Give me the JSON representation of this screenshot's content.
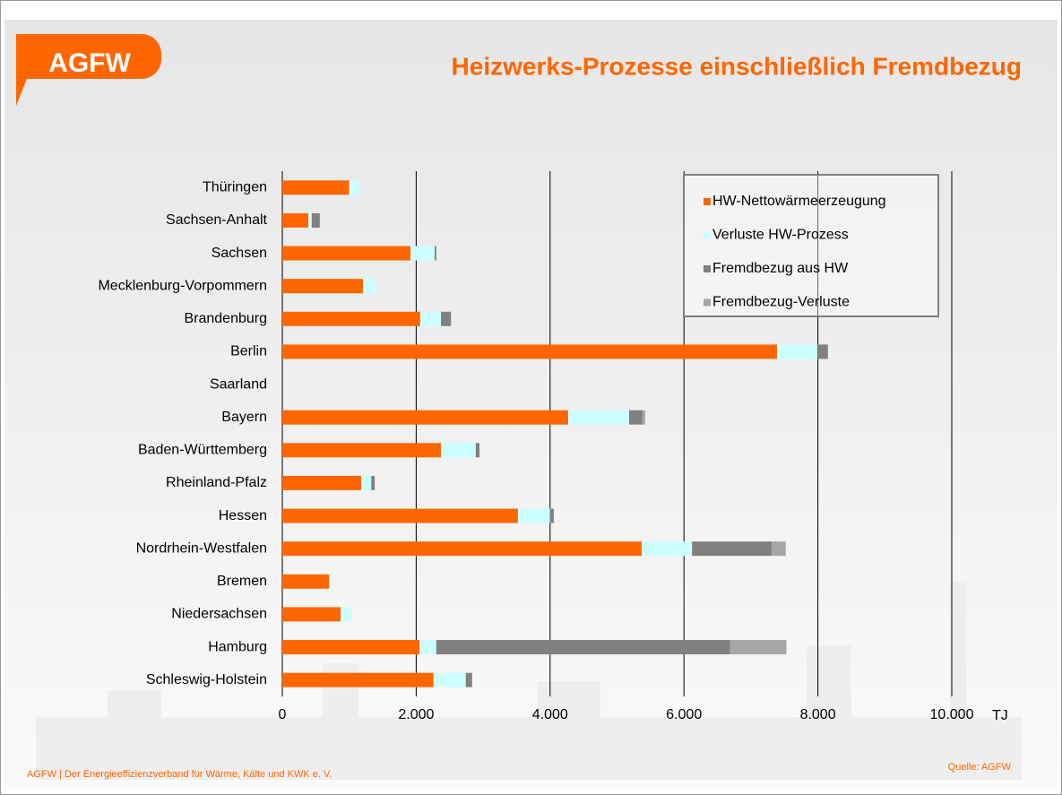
{
  "logo": "AGFW",
  "footer": {
    "left": "AGFW | Der Energieeffizienzverband für Wärme, Kälte und KWK e. V.",
    "right": "Quelle:  AGFW"
  },
  "chart_data": {
    "type": "stacked-barh",
    "title": "Heizwerks-Prozesse einschließlich Fremdbezug",
    "xlabel": "TJ",
    "categories": [
      "Thüringen",
      "Sachsen-Anhalt",
      "Sachsen",
      "Mecklenburg-Vorpommern",
      "Brandenburg",
      "Berlin",
      "Saarland",
      "Bayern",
      "Baden-Württemberg",
      "Rheinland-Pfalz",
      "Hessen",
      "Nordrhein-Westfalen",
      "Bremen",
      "Niedersachsen",
      "Hamburg",
      "Schleswig-Holstein"
    ],
    "series": [
      {
        "name": "HW-Nettowärmeerzeugung",
        "color": "#ff6600",
        "values": [
          1000,
          390,
          1915,
          1205,
          2060,
          7390,
          0,
          4270,
          2370,
          1180,
          3520,
          5370,
          700,
          870,
          2050,
          2260
        ]
      },
      {
        "name": "Verluste HW-Prozess",
        "color": "#ccffff",
        "values": [
          150,
          50,
          360,
          200,
          310,
          600,
          0,
          910,
          520,
          150,
          480,
          750,
          25,
          160,
          250,
          480
        ]
      },
      {
        "name": "Fremdbezug aus HW",
        "color": "#808080",
        "values": [
          0,
          120,
          25,
          0,
          150,
          160,
          0,
          200,
          55,
          50,
          55,
          1190,
          0,
          0,
          4390,
          95
        ]
      },
      {
        "name": "Fremdbezug-Verluste",
        "color": "#a6a6a6",
        "values": [
          0,
          0,
          0,
          0,
          0,
          0,
          0,
          40,
          0,
          0,
          0,
          210,
          0,
          0,
          840,
          0
        ]
      }
    ],
    "xlim": [
      0,
      10000
    ],
    "xticks": [
      0,
      {
        "value": 2000,
        "label": "2.000"
      },
      {
        "value": 4000,
        "label": "4.000"
      },
      {
        "value": 6000,
        "label": "6.000"
      },
      {
        "value": 8000,
        "label": "8.000"
      },
      {
        "value": 10000,
        "label": "10.000"
      }
    ],
    "grid": true,
    "legend": "upper right"
  }
}
